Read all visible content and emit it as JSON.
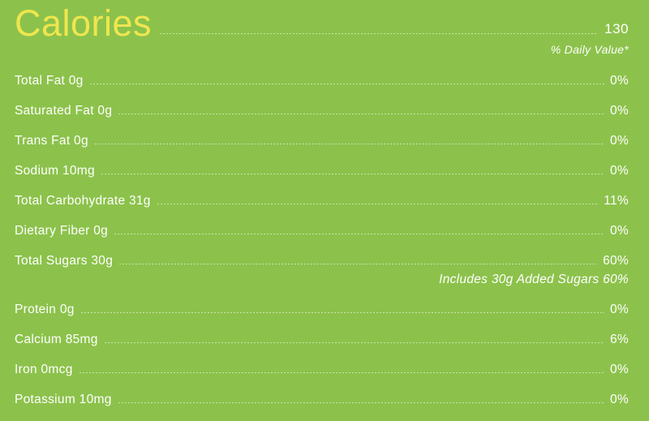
{
  "colors": {
    "background": "#8CC24B",
    "title_yellow": "#EFE64F",
    "text_white": "#FFFFFF",
    "leader_line": "rgba(255,255,255,0.55)"
  },
  "header": {
    "title": "Calories",
    "calories_value": "130",
    "daily_value_label": "% Daily Value*"
  },
  "rows": [
    {
      "label": "Total Fat 0g",
      "value": "0%"
    },
    {
      "label": "Saturated Fat 0g",
      "value": "0%"
    },
    {
      "label": "Trans Fat 0g",
      "value": "0%"
    },
    {
      "label": "Sodium 10mg",
      "value": "0%"
    },
    {
      "label": "Total Carbohydrate 31g",
      "value": "11%"
    },
    {
      "label": "Dietary Fiber 0g",
      "value": "0%"
    },
    {
      "label": "Total Sugars 30g",
      "value": "60%"
    },
    {
      "label": "Protein 0g",
      "value": "0%"
    },
    {
      "label": "Calcium 85mg",
      "value": "6%"
    },
    {
      "label": "Iron 0mcg",
      "value": "0%"
    },
    {
      "label": "Potassium 10mg",
      "value": "0%"
    }
  ],
  "notes": {
    "added_sugars": "Includes 30g Added Sugars 60%"
  }
}
